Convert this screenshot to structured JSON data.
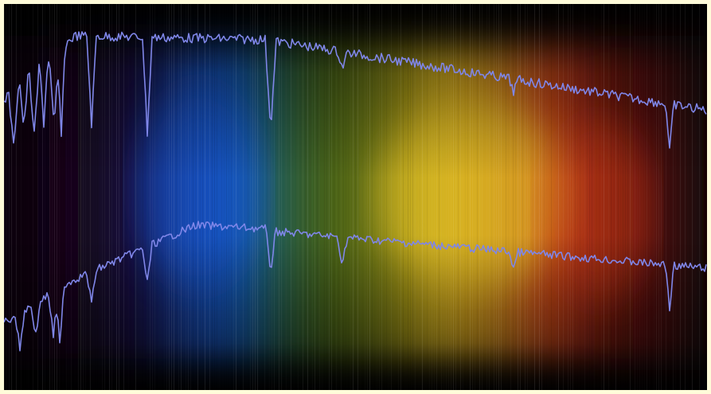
{
  "image": {
    "subject": "stellar-spectrum-with-absorption-lines",
    "colors": {
      "frame": "#fffbd9",
      "background": "#050406",
      "violet": "#2a0f3f",
      "blue": "#1456c8",
      "green": "#4a6a12",
      "yellow": "#d9b81f",
      "orange": "#c5421a",
      "red": "#5a0f0c",
      "trace": "#7f86e8"
    }
  }
}
